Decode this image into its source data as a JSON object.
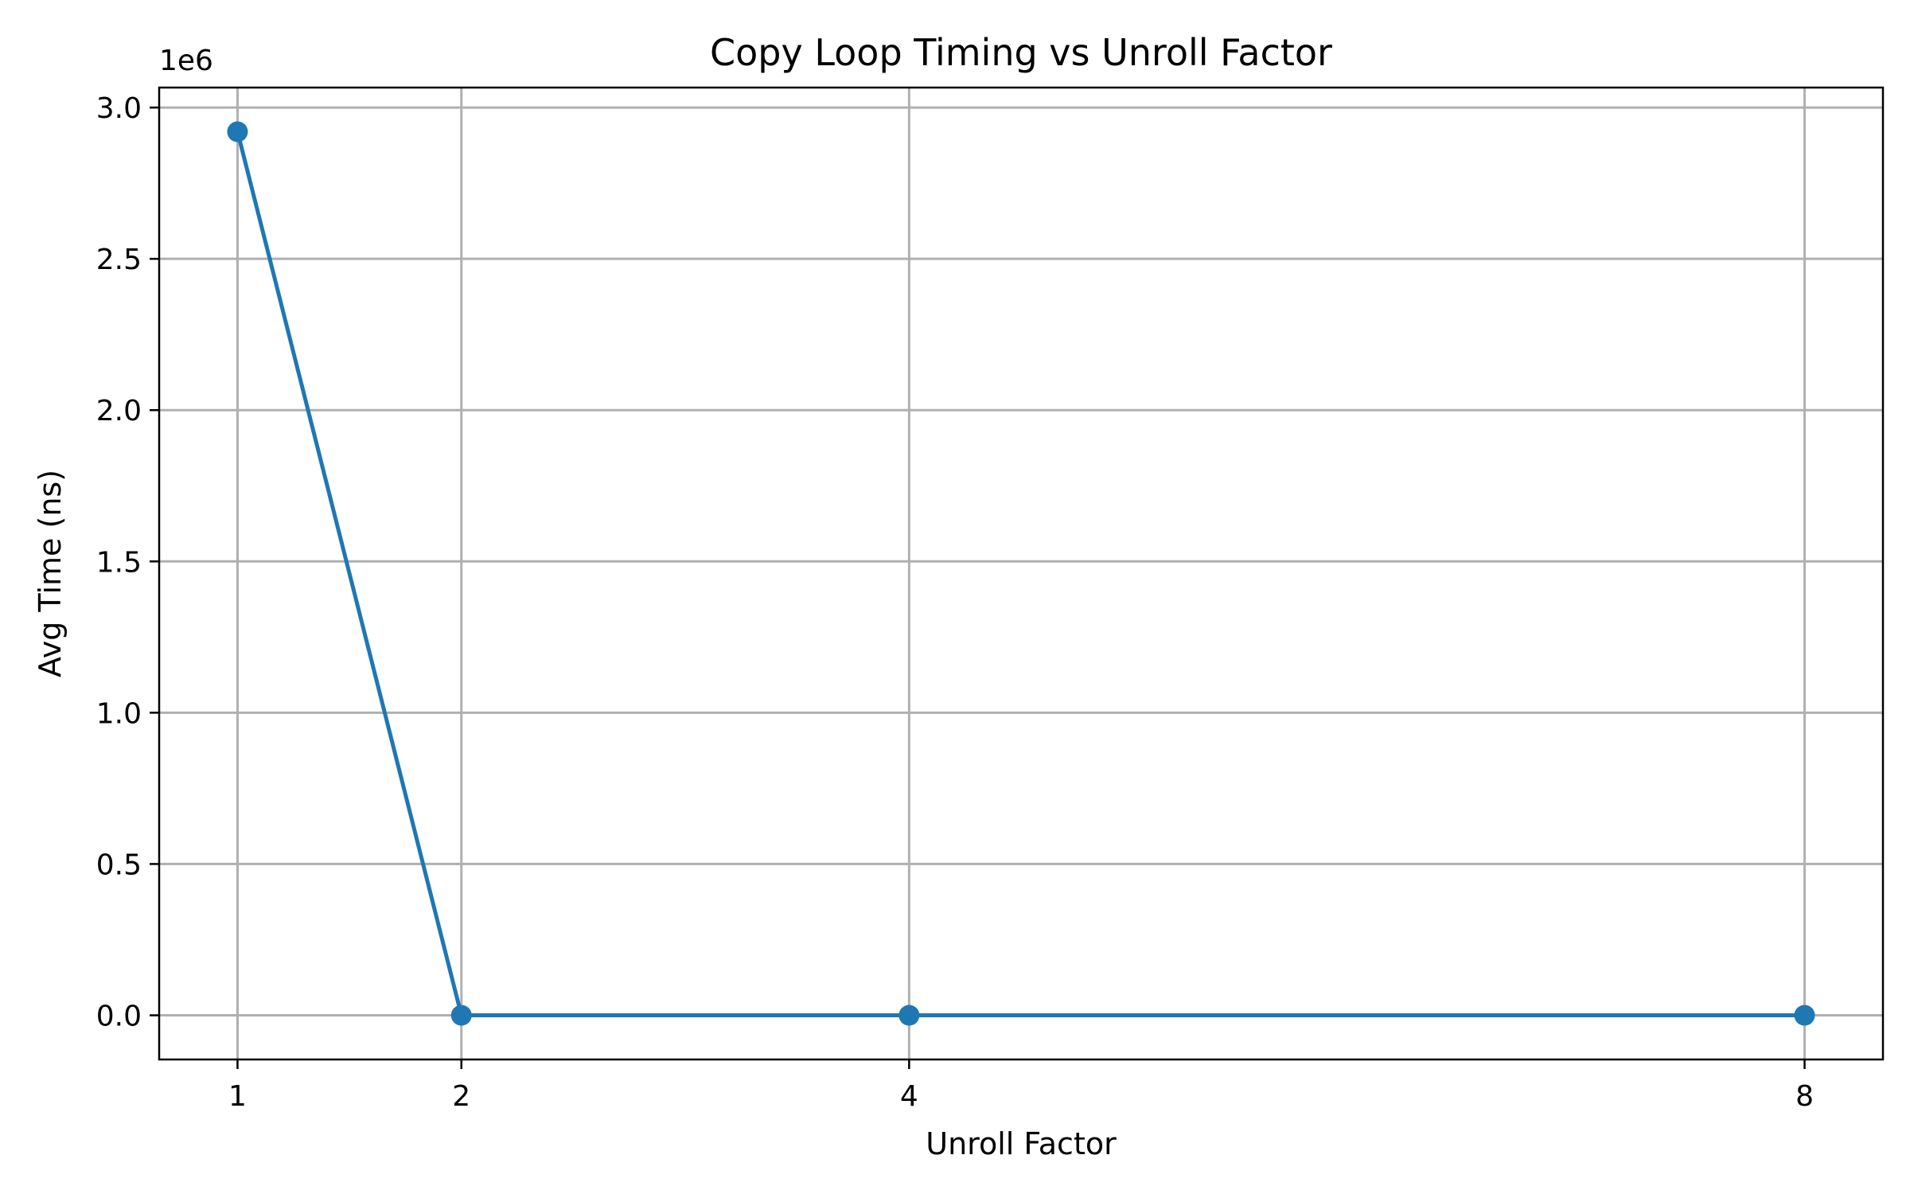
{
  "chart_data": {
    "type": "line",
    "title": "Copy Loop Timing vs Unroll Factor",
    "xlabel": "Unroll Factor",
    "ylabel": "Avg Time (ns)",
    "y_offset_label": "1e6",
    "x": [
      1,
      2,
      4,
      8
    ],
    "series": [
      {
        "values": [
          2920000,
          0,
          0,
          0
        ]
      }
    ],
    "xticks": [
      1,
      2,
      4,
      8
    ],
    "xtick_labels": [
      "1",
      "2",
      "4",
      "8"
    ],
    "xlim": [
      0.65,
      8.35
    ],
    "yticks": [
      0,
      500000,
      1000000,
      1500000,
      2000000,
      2500000,
      3000000
    ],
    "ytick_labels": [
      "0.0",
      "0.5",
      "1.0",
      "1.5",
      "2.0",
      "2.5",
      "3.0"
    ],
    "ylim": [
      -146000,
      3066000
    ],
    "grid": true,
    "marker": "circle",
    "color": "#1f77b4"
  }
}
